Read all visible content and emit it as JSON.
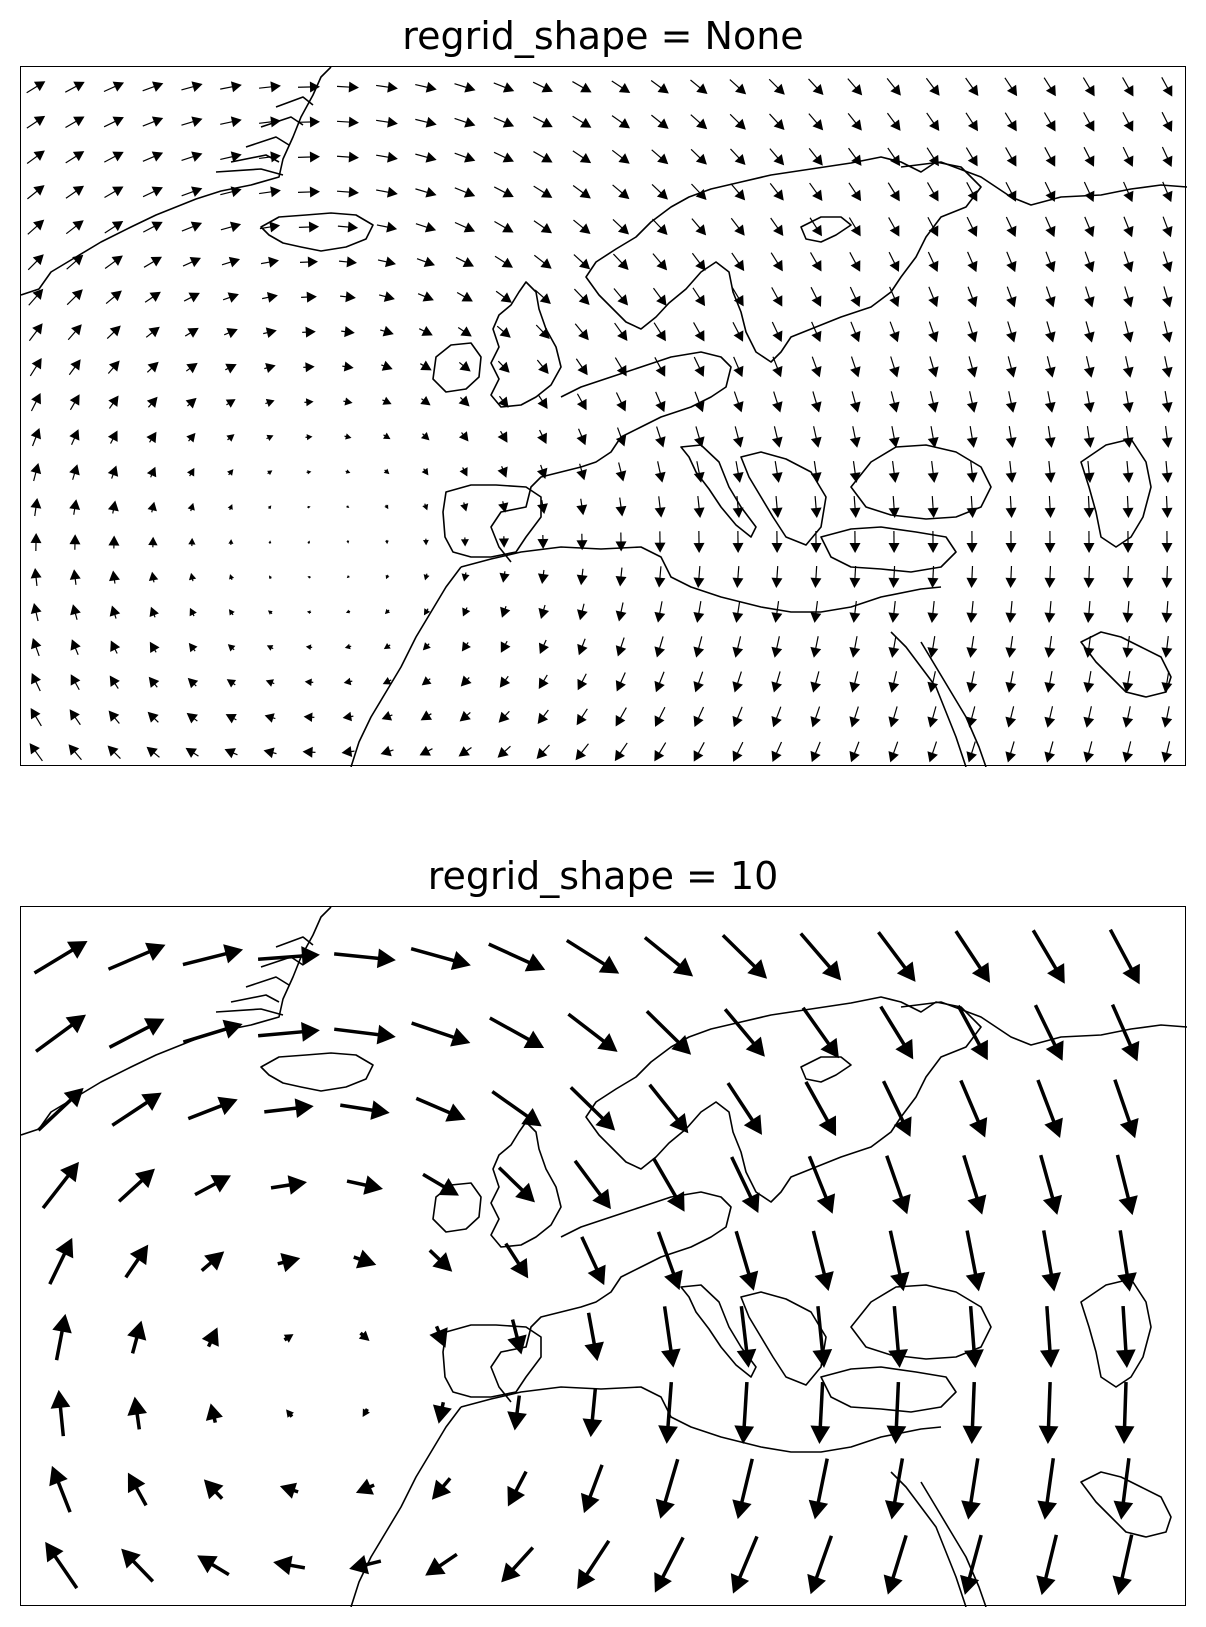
{
  "chart_data": [
    {
      "type": "quiver",
      "title": "regrid_shape = None",
      "xlabel": "",
      "ylabel": "",
      "grid": false,
      "legend": "none",
      "basemap": "coastlines (Europe, North Africa, Greenland, Iceland)",
      "arrow_color": "#000000",
      "arrow_scale": "small",
      "vectors_in_data_units": "dense field, unregridded (~24 x 17 arrows), rotational flow centered west of Iberia"
    },
    {
      "type": "quiver",
      "title": "regrid_shape = 10",
      "xlabel": "",
      "ylabel": "",
      "grid": false,
      "legend": "none",
      "basemap": "coastlines (Europe, North Africa, Greenland, Iceland)",
      "arrow_color": "#000000",
      "arrow_scale": "large",
      "vectors_in_data_units": "regridded field (~15 x 9 arrows), rotational flow centered west of Iberia"
    }
  ]
}
